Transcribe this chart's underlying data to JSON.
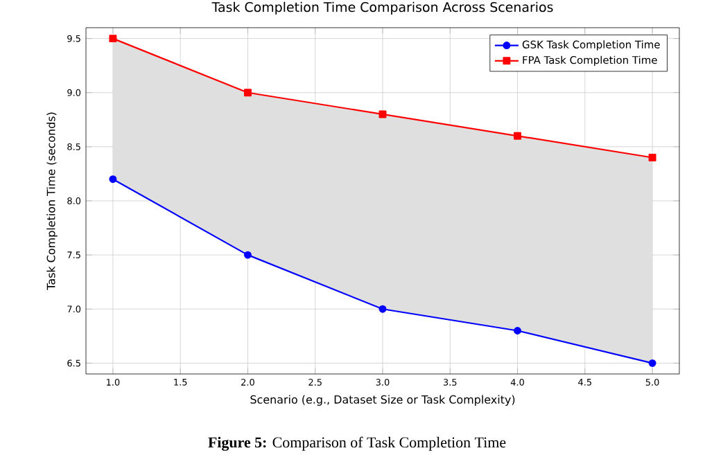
{
  "chart_data": {
    "type": "line",
    "title": "Task Completion Time Comparison Across Scenarios",
    "xlabel": "Scenario (e.g., Dataset Size or Task Complexity)",
    "ylabel": "Task Completion Time (seconds)",
    "x": [
      1,
      2,
      3,
      4,
      5
    ],
    "series": [
      {
        "name": "GSK Task Completion Time",
        "color": "#0000ff",
        "marker": "circle",
        "values": [
          8.2,
          7.5,
          7.0,
          6.8,
          6.5
        ],
        "lower": [
          8.2,
          7.5,
          7.0,
          6.8,
          6.5
        ],
        "upper": [
          9.5,
          9.0,
          8.8,
          8.6,
          8.4
        ]
      },
      {
        "name": "FPA Task Completion Time",
        "color": "#ff0000",
        "marker": "square",
        "values": [
          9.5,
          9.0,
          8.8,
          8.6,
          8.4
        ]
      }
    ],
    "xlim": [
      0.8,
      5.2
    ],
    "ylim": [
      6.4,
      9.6
    ],
    "xticks": [
      {
        "value": 1,
        "label": "1.0"
      },
      {
        "value": 1.5,
        "label": "1.5"
      },
      {
        "value": 2,
        "label": "2.0"
      },
      {
        "value": 2.5,
        "label": "2.5"
      },
      {
        "value": 3,
        "label": "3.0"
      },
      {
        "value": 3.5,
        "label": "3.5"
      },
      {
        "value": 4,
        "label": "4.0"
      },
      {
        "value": 4.5,
        "label": "4.5"
      },
      {
        "value": 5,
        "label": "5.0"
      }
    ],
    "yticks": [
      6.5,
      {
        "value": 7,
        "label": "7.0"
      },
      7.5,
      {
        "value": 8,
        "label": "8.0"
      },
      8.5,
      {
        "value": 9,
        "label": "9.0"
      },
      9.5
    ],
    "grid": true,
    "legend": "top right",
    "line_style": "solid",
    "annotations": [
      "**Figure 5:** Comparison of Task Completion Time"
    ]
  }
}
